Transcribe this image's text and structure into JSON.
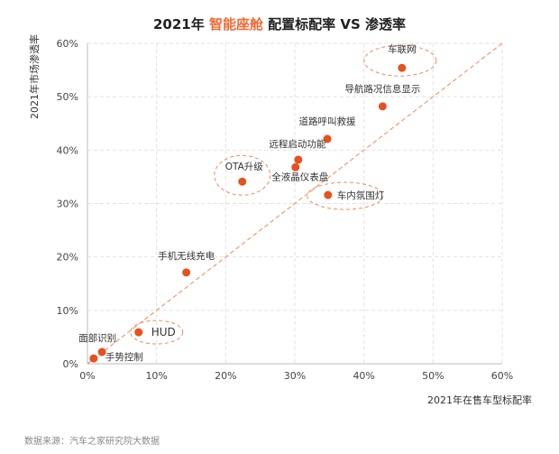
{
  "chart_data": {
    "type": "scatter",
    "title_parts": [
      "2021年 ",
      "智能座舱",
      " 配置标配率 VS 渗透率"
    ],
    "xlabel": "2021年在售车型标配率",
    "ylabel": "2021年市场渗透率",
    "xlim": [
      0,
      60
    ],
    "ylim": [
      0,
      60
    ],
    "x_ticks": [
      "0%",
      "10%",
      "20%",
      "30%",
      "40%",
      "50%",
      "60%"
    ],
    "y_ticks": [
      "0%",
      "10%",
      "20%",
      "30%",
      "40%",
      "50%",
      "60%"
    ],
    "grid": true,
    "reference_line": "y = x",
    "point_color": "#e8501e",
    "accent_color": "#f06a35",
    "points": [
      {
        "label": "车联网",
        "x": 45.5,
        "y": 55.4,
        "highlighted": true
      },
      {
        "label": "导航路况信息显示",
        "x": 42.7,
        "y": 48.2
      },
      {
        "label": "道路呼叫救援",
        "x": 34.7,
        "y": 42.1
      },
      {
        "label": "远程启动功能",
        "x": 30.5,
        "y": 38.2
      },
      {
        "label": "全液晶仪表盘",
        "x": 30.1,
        "y": 36.8
      },
      {
        "label": "OTA升级",
        "x": 22.4,
        "y": 34.1,
        "highlighted": true
      },
      {
        "label": "车内氛围灯",
        "x": 34.8,
        "y": 31.6,
        "highlighted": true
      },
      {
        "label": "手机无线充电",
        "x": 14.3,
        "y": 17.1
      },
      {
        "label": "HUD",
        "x": 7.4,
        "y": 5.9,
        "highlighted": true
      },
      {
        "label": "面部识别",
        "x": 2.1,
        "y": 2.2
      },
      {
        "label": "手势控制",
        "x": 0.9,
        "y": 1.0
      }
    ]
  },
  "source": "数据来源：汽车之家研究院大数据"
}
